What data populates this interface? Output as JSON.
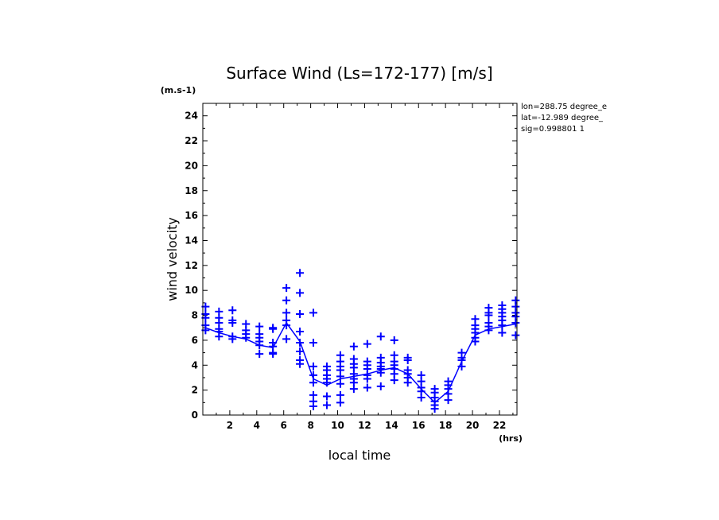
{
  "chart_data": {
    "type": "scatter",
    "title": "Surface Wind  (Ls=172-177) [m/s]",
    "xlabel": "local time",
    "ylabel": "wind velocity",
    "xunit": "(hrs)",
    "yunit": "(m.s-1)",
    "xlim": [
      0,
      23.3
    ],
    "ylim": [
      0,
      25
    ],
    "xticks": [
      2,
      4,
      6,
      8,
      10,
      12,
      14,
      16,
      18,
      20,
      22
    ],
    "yticks": [
      0,
      2,
      4,
      6,
      8,
      10,
      12,
      14,
      16,
      18,
      20,
      22,
      24
    ],
    "grid": false,
    "color": "#0000ff",
    "info": [
      "lon=288.75 degree_e",
      "lat=-12.989 degree_",
      "sig=0.998801 1"
    ],
    "series": [
      {
        "kind": "markers",
        "points": [
          [
            0.2,
            8.7
          ],
          [
            0.2,
            8.1
          ],
          [
            0.2,
            7.8
          ],
          [
            0.2,
            7.2
          ],
          [
            0.2,
            6.8
          ],
          [
            1.2,
            8.3
          ],
          [
            1.2,
            7.8
          ],
          [
            1.2,
            7.4
          ],
          [
            1.2,
            6.9
          ],
          [
            1.2,
            6.7
          ],
          [
            1.2,
            6.3
          ],
          [
            2.2,
            8.4
          ],
          [
            2.2,
            7.6
          ],
          [
            2.2,
            7.4
          ],
          [
            2.2,
            6.3
          ],
          [
            2.2,
            6.1
          ],
          [
            3.2,
            7.3
          ],
          [
            3.2,
            6.8
          ],
          [
            3.2,
            6.5
          ],
          [
            3.2,
            6.2
          ],
          [
            4.2,
            7.1
          ],
          [
            4.2,
            6.5
          ],
          [
            4.2,
            6.2
          ],
          [
            4.2,
            5.9
          ],
          [
            4.2,
            5.6
          ],
          [
            4.2,
            4.9
          ],
          [
            5.2,
            7.0
          ],
          [
            5.2,
            6.9
          ],
          [
            5.2,
            5.8
          ],
          [
            5.2,
            5.5
          ],
          [
            5.2,
            5.0
          ],
          [
            5.2,
            4.9
          ],
          [
            6.2,
            10.2
          ],
          [
            6.2,
            9.2
          ],
          [
            6.2,
            8.2
          ],
          [
            6.2,
            7.6
          ],
          [
            6.2,
            7.2
          ],
          [
            6.2,
            6.1
          ],
          [
            7.2,
            11.4
          ],
          [
            7.2,
            9.8
          ],
          [
            7.2,
            8.1
          ],
          [
            7.2,
            6.7
          ],
          [
            7.2,
            5.8
          ],
          [
            7.2,
            5.1
          ],
          [
            7.2,
            4.4
          ],
          [
            7.2,
            4.1
          ],
          [
            8.2,
            8.2
          ],
          [
            8.2,
            5.8
          ],
          [
            8.2,
            3.9
          ],
          [
            8.2,
            3.2
          ],
          [
            8.2,
            2.6
          ],
          [
            8.2,
            1.6
          ],
          [
            8.2,
            1.1
          ],
          [
            8.2,
            0.7
          ],
          [
            9.2,
            3.9
          ],
          [
            9.2,
            3.6
          ],
          [
            9.2,
            3.2
          ],
          [
            9.2,
            2.9
          ],
          [
            9.2,
            2.6
          ],
          [
            9.2,
            1.5
          ],
          [
            9.2,
            0.8
          ],
          [
            10.2,
            4.8
          ],
          [
            10.2,
            4.3
          ],
          [
            10.2,
            3.9
          ],
          [
            10.2,
            3.6
          ],
          [
            10.2,
            3.1
          ],
          [
            10.2,
            2.5
          ],
          [
            10.2,
            1.6
          ],
          [
            10.2,
            1.0
          ],
          [
            11.2,
            5.5
          ],
          [
            11.2,
            4.5
          ],
          [
            11.2,
            4.1
          ],
          [
            11.2,
            3.8
          ],
          [
            11.2,
            3.3
          ],
          [
            11.2,
            2.9
          ],
          [
            11.2,
            2.6
          ],
          [
            11.2,
            2.1
          ],
          [
            12.2,
            5.7
          ],
          [
            12.2,
            4.3
          ],
          [
            12.2,
            4.0
          ],
          [
            12.2,
            3.7
          ],
          [
            12.2,
            3.2
          ],
          [
            12.2,
            2.9
          ],
          [
            12.2,
            2.2
          ],
          [
            13.2,
            6.3
          ],
          [
            13.2,
            4.6
          ],
          [
            13.2,
            4.2
          ],
          [
            13.2,
            3.9
          ],
          [
            13.2,
            3.7
          ],
          [
            13.2,
            3.4
          ],
          [
            13.2,
            2.3
          ],
          [
            14.2,
            6.0
          ],
          [
            14.2,
            4.8
          ],
          [
            14.2,
            4.3
          ],
          [
            14.2,
            4.0
          ],
          [
            14.2,
            3.7
          ],
          [
            14.2,
            3.3
          ],
          [
            14.2,
            2.8
          ],
          [
            15.2,
            4.6
          ],
          [
            15.2,
            4.4
          ],
          [
            15.2,
            3.6
          ],
          [
            15.2,
            3.3
          ],
          [
            15.2,
            3.0
          ],
          [
            15.2,
            2.6
          ],
          [
            16.2,
            3.2
          ],
          [
            16.2,
            2.7
          ],
          [
            16.2,
            2.2
          ],
          [
            16.2,
            1.9
          ],
          [
            16.2,
            1.4
          ],
          [
            17.2,
            2.1
          ],
          [
            17.2,
            1.8
          ],
          [
            17.2,
            1.4
          ],
          [
            17.2,
            1.1
          ],
          [
            17.2,
            0.8
          ],
          [
            17.2,
            0.5
          ],
          [
            18.2,
            2.7
          ],
          [
            18.2,
            2.4
          ],
          [
            18.2,
            2.1
          ],
          [
            18.2,
            1.7
          ],
          [
            18.2,
            1.2
          ],
          [
            19.2,
            5.0
          ],
          [
            19.2,
            4.6
          ],
          [
            19.2,
            4.4
          ],
          [
            19.2,
            3.9
          ],
          [
            20.2,
            7.7
          ],
          [
            20.2,
            7.2
          ],
          [
            20.2,
            6.9
          ],
          [
            20.2,
            6.6
          ],
          [
            20.2,
            6.2
          ],
          [
            20.2,
            5.9
          ],
          [
            21.2,
            8.6
          ],
          [
            21.2,
            8.2
          ],
          [
            21.2,
            8.0
          ],
          [
            21.2,
            7.4
          ],
          [
            21.2,
            7.1
          ],
          [
            21.2,
            6.8
          ],
          [
            22.2,
            8.8
          ],
          [
            22.2,
            8.5
          ],
          [
            22.2,
            8.2
          ],
          [
            22.2,
            7.9
          ],
          [
            22.2,
            7.6
          ],
          [
            22.2,
            7.2
          ],
          [
            22.2,
            6.6
          ],
          [
            23.2,
            9.2
          ],
          [
            23.2,
            8.7
          ],
          [
            23.2,
            8.2
          ],
          [
            23.2,
            7.9
          ],
          [
            23.2,
            7.4
          ],
          [
            23.2,
            6.4
          ]
        ]
      },
      {
        "kind": "line",
        "x": [
          0.2,
          1.2,
          2.2,
          3.2,
          4.2,
          5.2,
          6.2,
          7.2,
          8.2,
          9.2,
          10.2,
          11.2,
          12.2,
          13.2,
          14.2,
          15.2,
          16.2,
          17.2,
          18.2,
          19.2,
          20.2,
          21.2,
          22.2,
          23.2
        ],
        "y": [
          7.0,
          6.6,
          6.3,
          6.1,
          5.6,
          5.4,
          7.4,
          5.9,
          2.9,
          2.4,
          2.9,
          3.1,
          3.3,
          3.6,
          3.8,
          3.3,
          2.1,
          1.0,
          1.9,
          4.3,
          6.4,
          6.9,
          7.1,
          7.3
        ]
      }
    ]
  }
}
